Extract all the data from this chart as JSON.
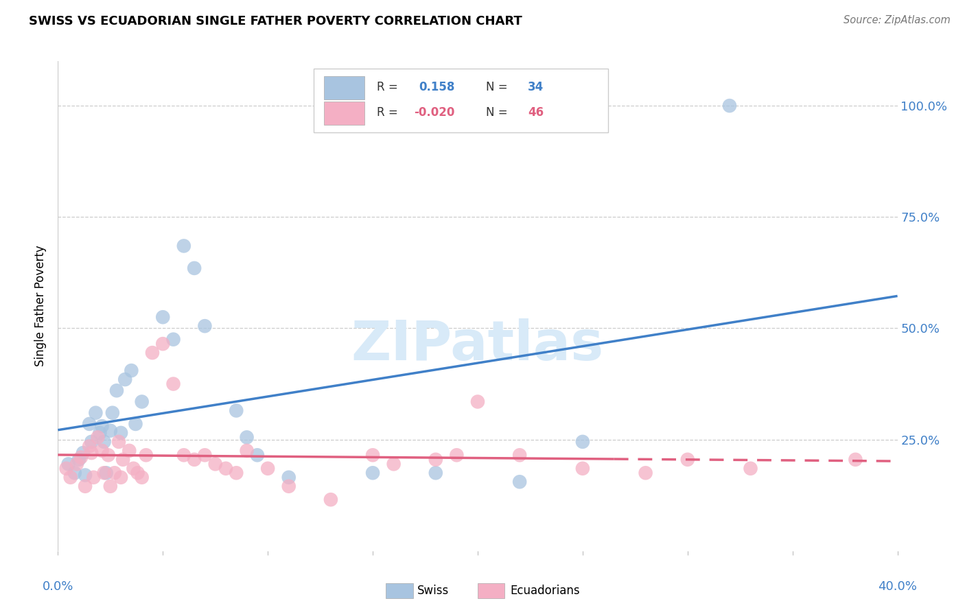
{
  "title": "SWISS VS ECUADORIAN SINGLE FATHER POVERTY CORRELATION CHART",
  "source": "Source: ZipAtlas.com",
  "ylabel": "Single Father Poverty",
  "ytick_labels": [
    "100.0%",
    "75.0%",
    "50.0%",
    "25.0%"
  ],
  "ytick_values": [
    1.0,
    0.75,
    0.5,
    0.25
  ],
  "xlim": [
    0.0,
    0.4
  ],
  "ylim": [
    0.0,
    1.1
  ],
  "swiss_R": 0.158,
  "swiss_N": 34,
  "ecu_R": -0.02,
  "ecu_N": 46,
  "swiss_color": "#a8c4e0",
  "ecu_color": "#f4afc4",
  "swiss_line_color": "#4080c8",
  "ecu_line_color": "#e06080",
  "background_color": "#ffffff",
  "watermark_color": "#d8eaf8",
  "swiss_x": [
    0.005,
    0.008,
    0.01,
    0.012,
    0.013,
    0.015,
    0.016,
    0.018,
    0.02,
    0.021,
    0.022,
    0.023,
    0.025,
    0.026,
    0.028,
    0.03,
    0.032,
    0.035,
    0.037,
    0.04,
    0.05,
    0.055,
    0.06,
    0.065,
    0.07,
    0.085,
    0.09,
    0.095,
    0.11,
    0.15,
    0.18,
    0.22,
    0.25,
    0.32
  ],
  "swiss_y": [
    0.195,
    0.175,
    0.205,
    0.22,
    0.17,
    0.285,
    0.245,
    0.31,
    0.265,
    0.28,
    0.245,
    0.175,
    0.27,
    0.31,
    0.36,
    0.265,
    0.385,
    0.405,
    0.285,
    0.335,
    0.525,
    0.475,
    0.685,
    0.635,
    0.505,
    0.315,
    0.255,
    0.215,
    0.165,
    0.175,
    0.175,
    0.155,
    0.245,
    1.0
  ],
  "ecu_x": [
    0.004,
    0.006,
    0.009,
    0.011,
    0.013,
    0.015,
    0.016,
    0.017,
    0.019,
    0.021,
    0.022,
    0.024,
    0.025,
    0.027,
    0.029,
    0.03,
    0.031,
    0.034,
    0.036,
    0.038,
    0.04,
    0.042,
    0.045,
    0.05,
    0.055,
    0.06,
    0.065,
    0.07,
    0.075,
    0.08,
    0.085,
    0.09,
    0.1,
    0.11,
    0.13,
    0.15,
    0.16,
    0.18,
    0.19,
    0.2,
    0.22,
    0.25,
    0.28,
    0.3,
    0.33,
    0.38
  ],
  "ecu_y": [
    0.185,
    0.165,
    0.195,
    0.21,
    0.145,
    0.235,
    0.22,
    0.165,
    0.255,
    0.225,
    0.175,
    0.215,
    0.145,
    0.175,
    0.245,
    0.165,
    0.205,
    0.225,
    0.185,
    0.175,
    0.165,
    0.215,
    0.445,
    0.465,
    0.375,
    0.215,
    0.205,
    0.215,
    0.195,
    0.185,
    0.175,
    0.225,
    0.185,
    0.145,
    0.115,
    0.215,
    0.195,
    0.205,
    0.215,
    0.335,
    0.215,
    0.185,
    0.175,
    0.205,
    0.185,
    0.205
  ]
}
